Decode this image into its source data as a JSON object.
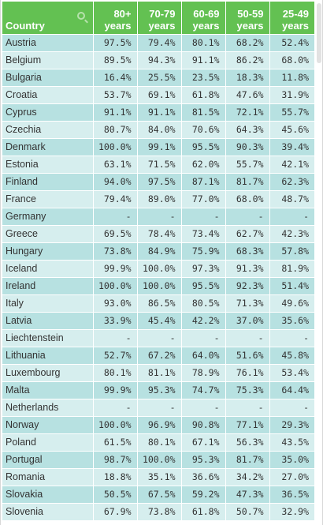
{
  "table": {
    "headers": {
      "country": "Country",
      "cols": [
        {
          "l1": "80+",
          "l2": "years"
        },
        {
          "l1": "70-79",
          "l2": "years"
        },
        {
          "l1": "60-69",
          "l2": "years"
        },
        {
          "l1": "50-59",
          "l2": "years"
        },
        {
          "l1": "25-49",
          "l2": "years"
        }
      ]
    },
    "rows": [
      {
        "country": "Austria",
        "v": [
          "97.5%",
          "79.4%",
          "80.1%",
          "68.2%",
          "52.4%"
        ]
      },
      {
        "country": "Belgium",
        "v": [
          "89.5%",
          "94.3%",
          "91.1%",
          "86.2%",
          "68.0%"
        ]
      },
      {
        "country": "Bulgaria",
        "v": [
          "16.4%",
          "25.5%",
          "23.5%",
          "18.3%",
          "11.8%"
        ]
      },
      {
        "country": "Croatia",
        "v": [
          "53.7%",
          "69.1%",
          "61.8%",
          "47.6%",
          "31.9%"
        ]
      },
      {
        "country": "Cyprus",
        "v": [
          "91.1%",
          "91.1%",
          "81.5%",
          "72.1%",
          "55.7%"
        ]
      },
      {
        "country": "Czechia",
        "v": [
          "80.7%",
          "84.0%",
          "70.6%",
          "64.3%",
          "45.6%"
        ]
      },
      {
        "country": "Denmark",
        "v": [
          "100.0%",
          "99.1%",
          "95.5%",
          "90.3%",
          "39.4%"
        ]
      },
      {
        "country": "Estonia",
        "v": [
          "63.1%",
          "71.5%",
          "62.0%",
          "55.7%",
          "42.1%"
        ]
      },
      {
        "country": "Finland",
        "v": [
          "94.0%",
          "97.5%",
          "87.1%",
          "81.7%",
          "62.3%"
        ]
      },
      {
        "country": "France",
        "v": [
          "79.4%",
          "89.0%",
          "77.0%",
          "68.0%",
          "48.7%"
        ]
      },
      {
        "country": "Germany",
        "v": [
          "-",
          "-",
          "-",
          "-",
          "-"
        ]
      },
      {
        "country": "Greece",
        "v": [
          "69.5%",
          "78.4%",
          "73.4%",
          "62.7%",
          "42.3%"
        ]
      },
      {
        "country": "Hungary",
        "v": [
          "73.8%",
          "84.9%",
          "75.9%",
          "68.3%",
          "57.8%"
        ]
      },
      {
        "country": "Iceland",
        "v": [
          "99.9%",
          "100.0%",
          "97.3%",
          "91.3%",
          "81.9%"
        ]
      },
      {
        "country": "Ireland",
        "v": [
          "100.0%",
          "100.0%",
          "95.5%",
          "92.3%",
          "51.4%"
        ]
      },
      {
        "country": "Italy",
        "v": [
          "93.0%",
          "86.5%",
          "80.5%",
          "71.3%",
          "49.6%"
        ]
      },
      {
        "country": "Latvia",
        "v": [
          "33.9%",
          "45.4%",
          "42.2%",
          "37.0%",
          "35.6%"
        ]
      },
      {
        "country": "Liechtenstein",
        "v": [
          "-",
          "-",
          "-",
          "-",
          "-"
        ]
      },
      {
        "country": "Lithuania",
        "v": [
          "52.7%",
          "67.2%",
          "64.0%",
          "51.6%",
          "45.8%"
        ]
      },
      {
        "country": "Luxembourg",
        "v": [
          "80.1%",
          "81.1%",
          "78.9%",
          "76.1%",
          "53.4%"
        ]
      },
      {
        "country": "Malta",
        "v": [
          "99.9%",
          "95.3%",
          "74.7%",
          "75.3%",
          "64.4%"
        ]
      },
      {
        "country": "Netherlands",
        "v": [
          "-",
          "-",
          "-",
          "-",
          "-"
        ]
      },
      {
        "country": "Norway",
        "v": [
          "100.0%",
          "96.9%",
          "90.8%",
          "77.1%",
          "29.3%"
        ]
      },
      {
        "country": "Poland",
        "v": [
          "61.5%",
          "80.1%",
          "67.1%",
          "56.3%",
          "43.5%"
        ]
      },
      {
        "country": "Portugal",
        "v": [
          "98.7%",
          "100.0%",
          "95.3%",
          "81.7%",
          "35.0%"
        ]
      },
      {
        "country": "Romania",
        "v": [
          "18.8%",
          "35.1%",
          "36.6%",
          "34.2%",
          "27.0%"
        ]
      },
      {
        "country": "Slovakia",
        "v": [
          "50.5%",
          "67.5%",
          "59.2%",
          "47.3%",
          "36.5%"
        ]
      },
      {
        "country": "Slovenia",
        "v": [
          "67.9%",
          "73.8%",
          "61.8%",
          "50.7%",
          "32.9%"
        ]
      }
    ]
  },
  "colors": {
    "header_bg": "#63c152",
    "row_odd": "#b7e1e1",
    "row_even": "#d6eeee"
  },
  "icons": {
    "search": "search-icon"
  }
}
